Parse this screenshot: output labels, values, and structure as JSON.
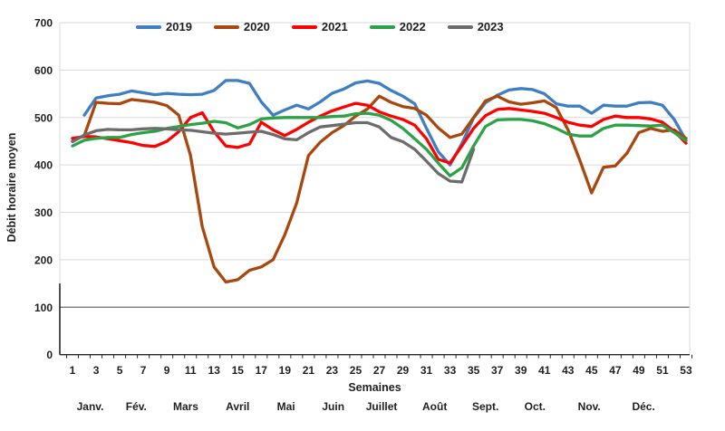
{
  "chart_data": {
    "type": "line",
    "title": "",
    "xlabel": "Semaines",
    "ylabel": "Débit horaire moyen",
    "ylim": [
      0,
      700
    ],
    "ytick_step": 100,
    "dark_reference_line_y": 100,
    "x_range_weeks": [
      1,
      53
    ],
    "x_tick_labels": [
      1,
      3,
      5,
      7,
      9,
      11,
      13,
      15,
      17,
      19,
      21,
      23,
      25,
      27,
      29,
      31,
      33,
      35,
      37,
      39,
      41,
      43,
      45,
      47,
      49,
      51,
      53
    ],
    "grid": true,
    "legend_position": "top",
    "months": [
      {
        "label": "Janv.",
        "week": 2.5
      },
      {
        "label": "Fév.",
        "week": 6.4
      },
      {
        "label": "Mars",
        "week": 10.6
      },
      {
        "label": "Avril",
        "week": 15.0
      },
      {
        "label": "Mai",
        "week": 19.1
      },
      {
        "label": "Juin",
        "week": 23.1
      },
      {
        "label": "Juillet",
        "week": 27.2
      },
      {
        "label": "Août",
        "week": 31.7
      },
      {
        "label": "Sept.",
        "week": 36.0
      },
      {
        "label": "Oct.",
        "week": 40.2
      },
      {
        "label": "Nov.",
        "week": 44.8
      },
      {
        "label": "Déc.",
        "week": 49.4
      }
    ],
    "series": [
      {
        "name": "2019",
        "color": "#3E7EC1",
        "values": [
          null,
          505,
          541,
          546,
          549,
          556,
          552,
          548,
          551,
          549,
          548,
          549,
          557,
          578,
          578,
          572,
          533,
          505,
          516,
          526,
          518,
          533,
          551,
          560,
          573,
          577,
          572,
          557,
          545,
          529,
          477,
          428,
          400,
          445,
          499,
          531,
          547,
          558,
          561,
          559,
          550,
          529,
          524,
          524,
          509,
          526,
          524,
          524,
          531,
          532,
          526,
          496,
          452
        ]
      },
      {
        "name": "2020",
        "color": "#A8470E",
        "values": [
          450,
          462,
          532,
          530,
          529,
          538,
          535,
          532,
          525,
          505,
          420,
          270,
          185,
          153,
          158,
          178,
          185,
          200,
          253,
          320,
          420,
          448,
          468,
          483,
          503,
          518,
          545,
          532,
          523,
          519,
          505,
          478,
          458,
          465,
          500,
          535,
          545,
          533,
          528,
          531,
          535,
          521,
          474,
          410,
          341,
          395,
          398,
          425,
          468,
          477,
          471,
          474,
          456
        ]
      },
      {
        "name": "2021",
        "color": "#FF0000",
        "values": [
          456,
          460,
          459,
          455,
          451,
          447,
          441,
          439,
          450,
          470,
          500,
          510,
          470,
          440,
          437,
          444,
          490,
          474,
          462,
          475,
          490,
          503,
          514,
          522,
          530,
          526,
          512,
          503,
          496,
          484,
          455,
          412,
          404,
          440,
          477,
          504,
          517,
          519,
          516,
          513,
          509,
          500,
          490,
          484,
          481,
          496,
          503,
          500,
          500,
          497,
          490,
          471,
          446
        ]
      },
      {
        "name": "2022",
        "color": "#2DA148",
        "values": [
          440,
          452,
          456,
          458,
          458,
          464,
          468,
          471,
          477,
          481,
          485,
          488,
          492,
          489,
          478,
          485,
          497,
          499,
          500,
          500,
          500,
          500,
          502,
          503,
          508,
          509,
          505,
          494,
          477,
          455,
          433,
          404,
          377,
          394,
          440,
          481,
          495,
          496,
          496,
          493,
          487,
          477,
          465,
          461,
          461,
          477,
          484,
          484,
          483,
          482,
          484,
          468,
          451
        ]
      },
      {
        "name": "2023",
        "color": "#6C6C6C",
        "values": [
          449,
          463,
          472,
          475,
          474,
          474,
          476,
          477,
          476,
          474,
          473,
          470,
          467,
          465,
          467,
          469,
          471,
          464,
          455,
          453,
          468,
          480,
          483,
          486,
          489,
          489,
          480,
          458,
          449,
          433,
          408,
          382,
          366,
          364,
          433
        ]
      }
    ]
  }
}
